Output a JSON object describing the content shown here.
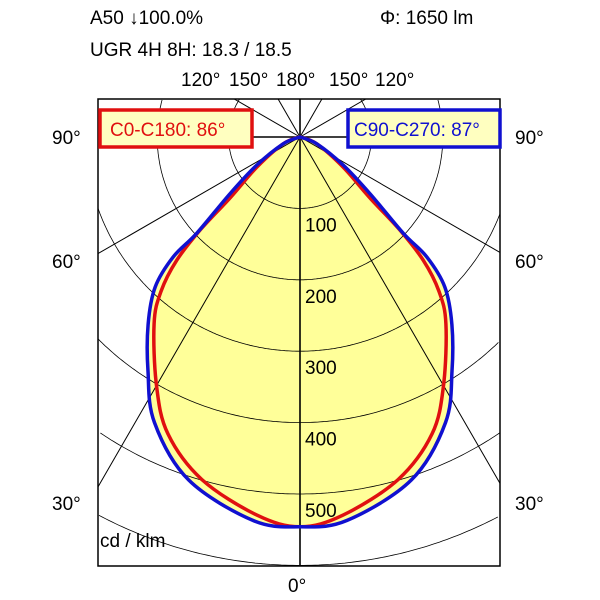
{
  "header": {
    "efficiency": "A50 ↓100.0%",
    "flux": "Φ: 1650 lm",
    "ugr": "UGR 4H 8H: 18.3 / 18.5"
  },
  "chart_data": {
    "type": "polar",
    "unit_label": "cd / klm",
    "radial_ticks": [
      100,
      200,
      300,
      400,
      500
    ],
    "radial_tick_labels": [
      "100",
      "200",
      "300",
      "400",
      "500"
    ],
    "angle_labels": {
      "top": [
        "120°",
        "150°",
        "180°",
        "150°",
        "120°"
      ],
      "left": [
        "90°",
        "60°",
        "30°"
      ],
      "right": [
        "90°",
        "60°",
        "30°"
      ],
      "bottom": "0°"
    },
    "grid": true,
    "fill_color": "#ffff99",
    "series": [
      {
        "name": "C0-C180: 86°",
        "color": "#e01010",
        "gamma": [
          0,
          6.5,
          16,
          24,
          30,
          38,
          42,
          45,
          47,
          49,
          55,
          68,
          90
        ],
        "intensity": [
          546,
          533,
          499,
          455,
          402,
          332,
          291,
          244,
          192,
          129,
          74,
          25,
          0
        ]
      },
      {
        "name": "C90-C270: 87°",
        "color": "#1010d0",
        "gamma": [
          0,
          7,
          18,
          27,
          33,
          39,
          44,
          46.6,
          47,
          51,
          57,
          68,
          90
        ],
        "intensity": [
          546,
          541,
          505,
          449,
          391,
          338,
          292,
          244,
          198,
          126,
          72,
          25,
          0
        ]
      }
    ]
  }
}
